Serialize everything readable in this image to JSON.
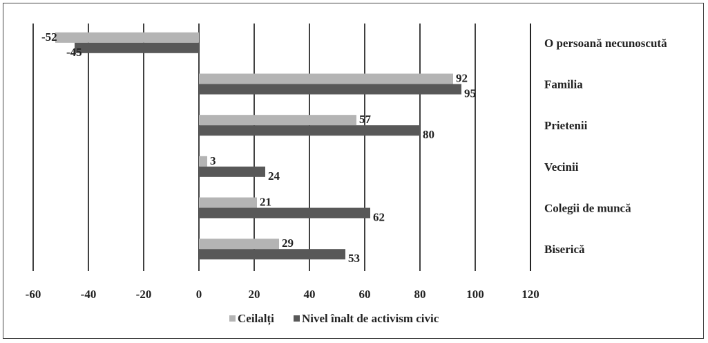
{
  "chart_data": {
    "type": "bar",
    "orientation": "horizontal",
    "title": "",
    "xlabel": "",
    "ylabel": "",
    "xlim": [
      -60,
      120
    ],
    "x_ticks": [
      -60,
      -40,
      -20,
      0,
      20,
      40,
      60,
      80,
      100,
      120
    ],
    "x_tick_labels": [
      "-60",
      "-40",
      "-20",
      "0",
      "20",
      "40",
      "60",
      "80",
      "100",
      "120"
    ],
    "categories": [
      "O persoană necunoscută",
      "Familia",
      "Prietenii",
      "Vecinii",
      "Colegii de muncă",
      "Biserică"
    ],
    "series": [
      {
        "name": "Ceilalți",
        "color": "#b4b4b4",
        "values": [
          -52,
          92,
          57,
          3,
          21,
          29
        ],
        "labels": [
          "-52",
          "92",
          "57",
          "3",
          "21",
          "29"
        ]
      },
      {
        "name": "Nivel înalt de activism civic",
        "color": "#585858",
        "values": [
          -45,
          95,
          80,
          24,
          62,
          53
        ],
        "labels": [
          "-45",
          "95",
          "80",
          "24",
          "62",
          "53"
        ]
      }
    ],
    "grid": "vertical",
    "legend_position": "bottom"
  }
}
